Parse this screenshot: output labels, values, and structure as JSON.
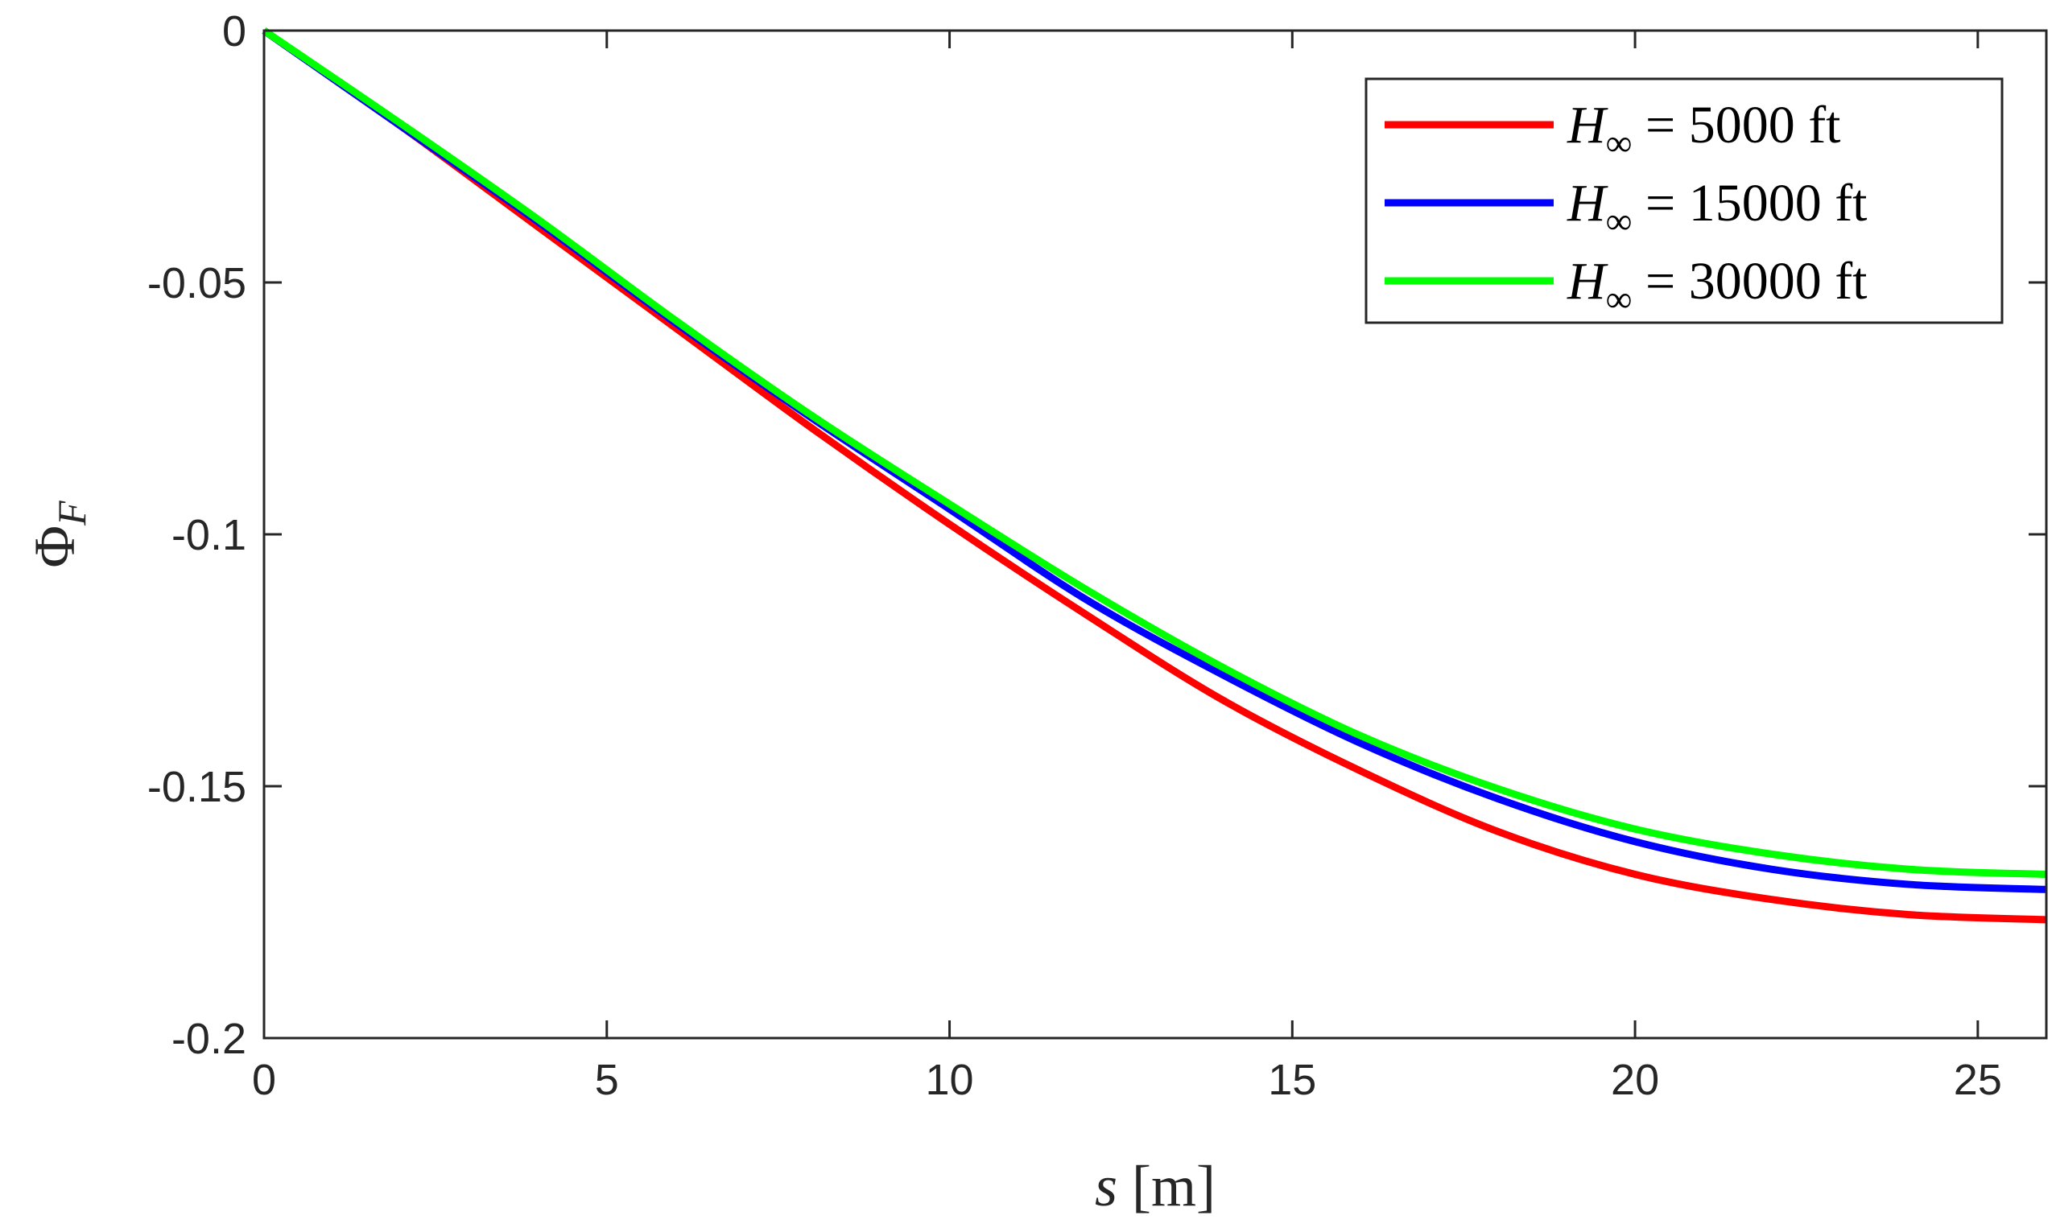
{
  "chart_data": {
    "type": "line",
    "xlabel": "s [m]",
    "ylabel": "Φ_F",
    "xlim": [
      0,
      26
    ],
    "ylim": [
      -0.2,
      0
    ],
    "xticks": [
      0,
      5,
      10,
      15,
      20,
      25
    ],
    "yticks": [
      0,
      -0.05,
      -0.1,
      -0.15,
      -0.2
    ],
    "xtick_labels": [
      "0",
      "5",
      "10",
      "15",
      "20",
      "25"
    ],
    "ytick_labels": [
      "0",
      "-0.05",
      "-0.1",
      "-0.15",
      "-0.2"
    ],
    "grid": false,
    "legend_position": "top-right",
    "x": [
      0,
      2,
      4,
      6,
      8,
      10,
      12,
      14,
      16,
      18,
      20,
      22,
      24,
      26
    ],
    "series": [
      {
        "name": "H∞ = 5000 ft",
        "legend_var": "H",
        "legend_sub": "∞",
        "legend_rest": " = 5000 ft",
        "color": "#ff0000",
        "values": [
          0,
          -0.019,
          -0.039,
          -0.059,
          -0.079,
          -0.098,
          -0.116,
          -0.133,
          -0.147,
          -0.159,
          -0.1675,
          -0.1725,
          -0.1755,
          -0.1765
        ]
      },
      {
        "name": "H∞ = 15000 ft",
        "legend_var": "H",
        "legend_sub": "∞",
        "legend_rest": " = 15000 ft",
        "color": "#0000ff",
        "values": [
          0,
          -0.019,
          -0.038,
          -0.058,
          -0.077,
          -0.095,
          -0.113,
          -0.128,
          -0.1415,
          -0.1525,
          -0.161,
          -0.1665,
          -0.1695,
          -0.1705
        ]
      },
      {
        "name": "H∞ = 30000 ft",
        "legend_var": "H",
        "legend_sub": "∞",
        "legend_rest": " = 30000 ft",
        "color": "#00ff00",
        "values": [
          0,
          -0.0185,
          -0.0375,
          -0.0575,
          -0.0765,
          -0.094,
          -0.111,
          -0.1265,
          -0.14,
          -0.1505,
          -0.1585,
          -0.1635,
          -0.1665,
          -0.1675
        ]
      }
    ]
  }
}
